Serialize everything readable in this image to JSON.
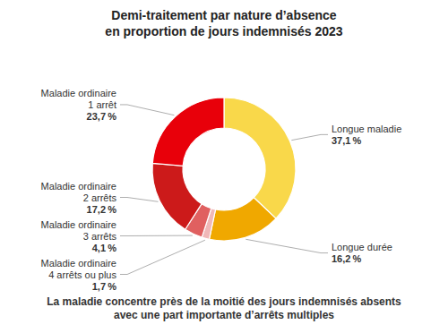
{
  "chart_data": {
    "type": "donut",
    "title": "Demi-traitement par nature d’absence\nen proportion de jours indemnisés 2023",
    "subtitle": "La maladie concentre près de la moitié des jours indemnisés absents\navec une part importante d’arrêts multiples",
    "categories": [
      "Longue maladie",
      "Longue durée",
      "Maladie ordinaire\n4 arrêts ou plus",
      "Maladie ordinaire\n3 arrêts",
      "Maladie ordinaire\n2 arrêts",
      "Maladie ordinaire\n1 arrêt"
    ],
    "values": [
      37.1,
      16.2,
      1.7,
      4.1,
      17.2,
      23.7
    ],
    "value_labels": [
      "37,1 %",
      "16,2 %",
      "1,7 %",
      "4,1 %",
      "17,2 %",
      "23,7 %"
    ],
    "colors": [
      "#F9D84A",
      "#F0A800",
      "#F0B8B8",
      "#E06060",
      "#CC1A1A",
      "#E8000A"
    ],
    "data_labels": true
  }
}
